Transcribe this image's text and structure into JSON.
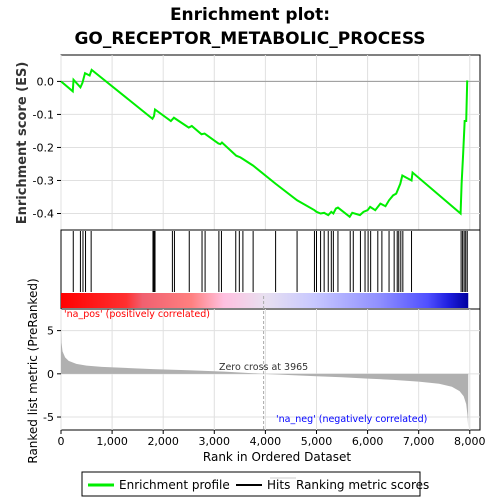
{
  "title_line1": "Enrichment plot:",
  "title_line2": "GO_RECEPTOR_METABOLIC_PROCESS",
  "colors": {
    "enrichment_line": "#00ee00",
    "hits": "#000000",
    "metric_fill": "#b0b0b0",
    "pos_label": "#ff0000",
    "neg_label": "#0000ff",
    "zero_line": "#aaaaaa"
  },
  "chart_data": {
    "type": "line",
    "ylabel_top": "Enrichment score (ES)",
    "ylabel_bottom": "Ranked list metric (PreRanked)",
    "xlabel": "Rank in Ordered Dataset",
    "xlim": [
      0,
      8200
    ],
    "ylim_top": [
      -0.45,
      0.08
    ],
    "ylim_bottom": [
      -6.5,
      7.5
    ],
    "x_ticks": [
      0,
      1000,
      2000,
      3000,
      4000,
      5000,
      6000,
      7000,
      8000
    ],
    "x_tick_labels": [
      "0",
      "1,000",
      "2,000",
      "3,000",
      "4,000",
      "5,000",
      "6,000",
      "7,000",
      "8,000"
    ],
    "y_ticks_top": [
      0.0,
      -0.1,
      -0.2,
      -0.3,
      -0.4
    ],
    "y_tick_labels_top": [
      "0.0",
      "-0.1",
      "-0.2",
      "-0.3",
      "-0.4"
    ],
    "y_ticks_bottom": [
      5,
      0,
      -5
    ],
    "y_tick_labels_bottom": [
      "5",
      "0",
      "-5"
    ],
    "zero_cross_label": "Zero cross at 3965",
    "zero_cross_x": 3965,
    "pos_label": "'na_pos' (positively correlated)",
    "neg_label": "'na_neg' (negatively correlated)",
    "total_genes": 7970,
    "es_curve": [
      [
        0,
        0.0
      ],
      [
        230,
        -0.03
      ],
      [
        245,
        0.005
      ],
      [
        380,
        -0.018
      ],
      [
        420,
        -0.004
      ],
      [
        470,
        0.025
      ],
      [
        560,
        0.018
      ],
      [
        600,
        0.035
      ],
      [
        1790,
        -0.113
      ],
      [
        1820,
        -0.105
      ],
      [
        1840,
        -0.085
      ],
      [
        2150,
        -0.12
      ],
      [
        2210,
        -0.11
      ],
      [
        2500,
        -0.14
      ],
      [
        2560,
        -0.135
      ],
      [
        2750,
        -0.16
      ],
      [
        2810,
        -0.158
      ],
      [
        3080,
        -0.188
      ],
      [
        3120,
        -0.19
      ],
      [
        3150,
        -0.185
      ],
      [
        3430,
        -0.225
      ],
      [
        3510,
        -0.23
      ],
      [
        3560,
        -0.235
      ],
      [
        3760,
        -0.255
      ],
      [
        4200,
        -0.31
      ],
      [
        4620,
        -0.36
      ],
      [
        4960,
        -0.39
      ],
      [
        5000,
        -0.395
      ],
      [
        5080,
        -0.4
      ],
      [
        5150,
        -0.398
      ],
      [
        5230,
        -0.405
      ],
      [
        5290,
        -0.395
      ],
      [
        5330,
        -0.4
      ],
      [
        5380,
        -0.385
      ],
      [
        5420,
        -0.382
      ],
      [
        5650,
        -0.41
      ],
      [
        5700,
        -0.398
      ],
      [
        5850,
        -0.405
      ],
      [
        5920,
        -0.395
      ],
      [
        6000,
        -0.39
      ],
      [
        6050,
        -0.38
      ],
      [
        6150,
        -0.39
      ],
      [
        6250,
        -0.37
      ],
      [
        6350,
        -0.378
      ],
      [
        6420,
        -0.36
      ],
      [
        6500,
        -0.345
      ],
      [
        6560,
        -0.34
      ],
      [
        6600,
        -0.325
      ],
      [
        6640,
        -0.31
      ],
      [
        6680,
        -0.285
      ],
      [
        6860,
        -0.3
      ],
      [
        6880,
        -0.276
      ],
      [
        7820,
        -0.4
      ],
      [
        7840,
        -0.31
      ],
      [
        7870,
        -0.22
      ],
      [
        7900,
        -0.12
      ],
      [
        7930,
        -0.12
      ],
      [
        7950,
        0.003
      ]
    ],
    "hits": [
      240,
      380,
      430,
      480,
      590,
      1800,
      1820,
      1840,
      2180,
      2220,
      2510,
      2760,
      2820,
      3090,
      3140,
      3420,
      3490,
      3560,
      3760,
      4200,
      4620,
      4960,
      5000,
      5080,
      5150,
      5230,
      5290,
      5330,
      5420,
      5660,
      5720,
      5860,
      5950,
      6010,
      6060,
      6200,
      6280,
      6420,
      6520,
      6580,
      6610,
      6650,
      6690,
      6860,
      7830,
      7860,
      7890,
      7920,
      7950
    ],
    "metric_profile": [
      [
        0,
        5.2
      ],
      [
        10,
        3.6
      ],
      [
        30,
        2.6
      ],
      [
        80,
        1.9
      ],
      [
        150,
        1.5
      ],
      [
        300,
        1.15
      ],
      [
        500,
        0.95
      ],
      [
        800,
        0.8
      ],
      [
        1200,
        0.7
      ],
      [
        1800,
        0.55
      ],
      [
        2500,
        0.42
      ],
      [
        3200,
        0.25
      ],
      [
        3965,
        0.0
      ],
      [
        4500,
        -0.15
      ],
      [
        5000,
        -0.28
      ],
      [
        5500,
        -0.4
      ],
      [
        6000,
        -0.55
      ],
      [
        6500,
        -0.7
      ],
      [
        7000,
        -0.9
      ],
      [
        7400,
        -1.15
      ],
      [
        7650,
        -1.5
      ],
      [
        7800,
        -2.0
      ],
      [
        7880,
        -2.6
      ],
      [
        7930,
        -3.5
      ],
      [
        7955,
        -4.8
      ],
      [
        7970,
        -6.3
      ]
    ],
    "legend": [
      "Enrichment profile",
      "Hits",
      "Ranking metric scores"
    ]
  }
}
